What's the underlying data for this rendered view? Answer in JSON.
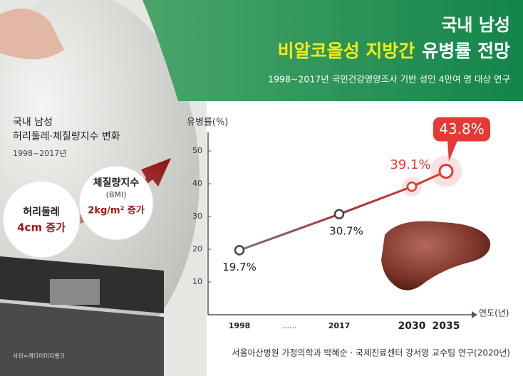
{
  "header": {
    "line1": "국내 남성",
    "highlight": "비알코올성 지방간",
    "rest": "유병률 전망",
    "subtitle": "1998~2017년 국민건강영양조사 기반 성인 4만여 명 대상 연구"
  },
  "left_panel": {
    "title1": "국내 남성",
    "title2": "허리둘레·체질량지수 변화",
    "period": "1998~2017년",
    "bmi_title": "체질량지수",
    "bmi_sub": "(BMI)",
    "bmi_change": "2kg/m² 증가",
    "waist_title": "허리둘레",
    "waist_change": "4cm 증가",
    "photo_credit": "사진=게티이미지뱅크"
  },
  "chart_data": {
    "type": "line",
    "y_label": "유병률(%)",
    "x_label": "연도(년)",
    "categories": [
      "1998",
      "2017",
      "2030",
      "2035"
    ],
    "gap_label": "......",
    "series": [
      {
        "name": "유병률",
        "color": "#e53935",
        "values": [
          19.7,
          30.7,
          39.1,
          43.8
        ],
        "value_labels": [
          "19.7%",
          "30.7%",
          "39.1%",
          "43.8%"
        ]
      }
    ],
    "ylim": [
      0,
      55
    ],
    "yticks": [
      10,
      20,
      30,
      40,
      50
    ],
    "grid": false
  },
  "footer": {
    "source": "서울아산병원 가정의학과 박혜순 · 국제진료센터 강서영 교수팀 연구(2020년)"
  }
}
